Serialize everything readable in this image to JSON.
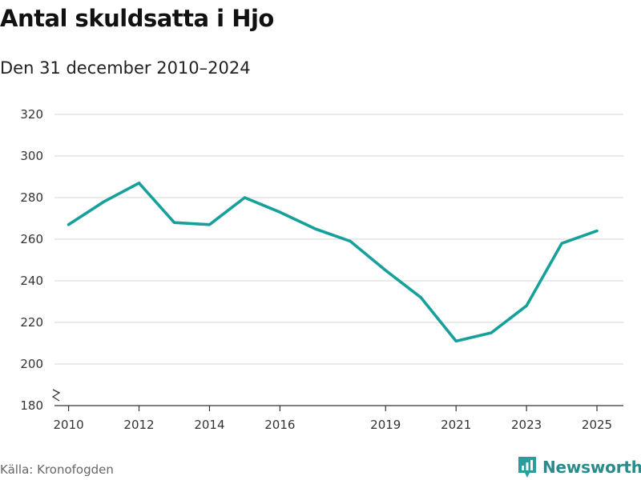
{
  "title": "Antal skuldsatta i Hjo",
  "subtitle": "Den 31 december 2010–2024",
  "source": "Källa: Kronofogden",
  "brand": {
    "name": "Newsworthy",
    "color": "#2a9d9d"
  },
  "colors": {
    "line": "#15a099",
    "grid": "#dddddd",
    "axis": "#333333"
  },
  "chart_data": {
    "type": "line",
    "title": "Antal skuldsatta i Hjo",
    "subtitle": "Den 31 december 2010–2024",
    "xlabel": "",
    "ylabel": "",
    "x": [
      2010,
      2011,
      2012,
      2013,
      2014,
      2015,
      2016,
      2017,
      2018,
      2019,
      2020,
      2021,
      2022,
      2023,
      2024,
      2025
    ],
    "series": [
      {
        "name": "Antal skuldsatta",
        "values": [
          267,
          278,
          287,
          268,
          267,
          280,
          273,
          265,
          259,
          245,
          232,
          211,
          215,
          228,
          258,
          264
        ]
      }
    ],
    "xticks": [
      2010,
      2012,
      2014,
      2016,
      2019,
      2021,
      2023,
      2025
    ],
    "yticks": [
      180,
      200,
      220,
      240,
      260,
      280,
      300,
      320
    ],
    "ylim": [
      180,
      320
    ],
    "xlim": [
      2009.6,
      2025.75
    ],
    "grid": true,
    "axis_break": true
  }
}
